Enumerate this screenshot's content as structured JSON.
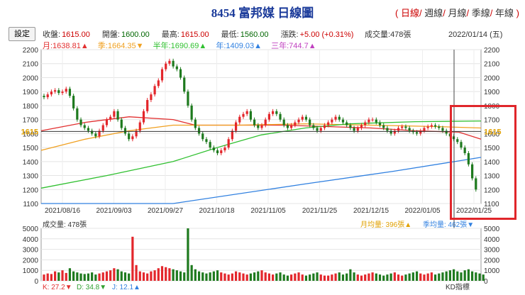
{
  "header": {
    "title": "8454 富邦媒 日線圖",
    "periods": [
      "日線",
      "週線",
      "月線",
      "季線",
      "年線"
    ],
    "selected_period": "日線",
    "settings_label": "設定"
  },
  "quote": {
    "close_label": "收盤:",
    "close": "1615.00",
    "open_label": "開盤:",
    "open": "1600.00",
    "high_label": "最高:",
    "high": "1615.00",
    "low_label": "最低:",
    "low": "1560.00",
    "change_label": "漲跌:",
    "change": "+5.00 (+0.31%)",
    "volume_label": "成交量:",
    "volume": "478張",
    "date": "2022/01/14 (五)"
  },
  "ma_legend": {
    "month": "月:1638.81▲",
    "season": "季:1664.35▼",
    "half_year": "半年:1690.69▲",
    "year": "年:1409.03▲",
    "three_year": "三年:744.7▲"
  },
  "colors": {
    "up": "#e3262b",
    "down": "#1e7a1e",
    "month_ma": "#e23030",
    "season_ma": "#f0a020",
    "half_year_ma": "#30c030",
    "year_ma": "#3080e0",
    "three_year_ma": "#c040c0",
    "highlight": "#e0262b"
  },
  "chart_data": [
    {
      "type": "candlestick",
      "price_axis_ticks": [
        1100,
        1200,
        1300,
        1400,
        1500,
        1600,
        1700,
        1800,
        1900,
        2000,
        2100,
        2200
      ],
      "ylim": [
        1100,
        2200
      ],
      "reference_price": 1615,
      "reference_label": "1615",
      "x_tick_labels": [
        "2021/08/16",
        "2021/09/03",
        "2021/09/27",
        "2021/10/18",
        "2021/11/05",
        "2021/11/25",
        "2021/12/15",
        "2022/01/05",
        "2022/01/25"
      ],
      "closes": [
        1860,
        1880,
        1900,
        1910,
        1890,
        1900,
        1920,
        1870,
        1780,
        1700,
        1660,
        1640,
        1620,
        1600,
        1580,
        1620,
        1660,
        1700,
        1720,
        1760,
        1700,
        1640,
        1600,
        1560,
        1580,
        1620,
        1680,
        1760,
        1840,
        1880,
        1940,
        1980,
        2060,
        2100,
        2120,
        2080,
        2060,
        2000,
        1900,
        1800,
        1700,
        1640,
        1600,
        1560,
        1540,
        1500,
        1480,
        1460,
        1480,
        1500,
        1560,
        1620,
        1680,
        1720,
        1740,
        1760,
        1700,
        1660,
        1640,
        1660,
        1700,
        1740,
        1760,
        1740,
        1700,
        1660,
        1640,
        1660,
        1680,
        1700,
        1720,
        1700,
        1660,
        1640,
        1620,
        1640,
        1660,
        1680,
        1700,
        1720,
        1700,
        1680,
        1660,
        1640,
        1620,
        1640,
        1660,
        1680,
        1700,
        1700,
        1680,
        1660,
        1640,
        1620,
        1600,
        1620,
        1640,
        1650,
        1640,
        1620,
        1610,
        1600,
        1620,
        1640,
        1650,
        1660,
        1650,
        1640,
        1620,
        1600,
        1580,
        1560,
        1540,
        1500,
        1460,
        1380,
        1280,
        1200
      ],
      "volumes": [
        600,
        700,
        650,
        900,
        800,
        1000,
        750,
        1200,
        900,
        800,
        700,
        650,
        700,
        800,
        600,
        700,
        800,
        900,
        1000,
        1200,
        1100,
        900,
        800,
        700,
        4200,
        1500,
        900,
        800,
        700,
        900,
        1000,
        1200,
        1400,
        1300,
        1200,
        1100,
        1000,
        900,
        800,
        5000,
        1500,
        1100,
        900,
        800,
        700,
        800,
        900,
        1000,
        800,
        700,
        600,
        700,
        900,
        800,
        700,
        600,
        700,
        800,
        900,
        1000,
        800,
        700,
        600,
        700,
        800,
        600,
        500,
        600,
        700,
        800,
        600,
        500,
        600,
        700,
        800,
        600,
        500,
        500,
        600,
        700,
        800,
        600,
        700,
        1100,
        800,
        600,
        500,
        600,
        700,
        800,
        700,
        600,
        500,
        600,
        700,
        800,
        600,
        500,
        600,
        700,
        800,
        900,
        700,
        600,
        700,
        800,
        600,
        700,
        800,
        900,
        1000,
        1100,
        900,
        800,
        1000,
        1100,
        900,
        800,
        700,
        600
      ],
      "ma": [
        {
          "name": "月",
          "color": "#e23030",
          "points": [
            [
              0,
              1620
            ],
            [
              0.1,
              1680
            ],
            [
              0.2,
              1720
            ],
            [
              0.3,
              1700
            ],
            [
              0.35,
              1660
            ],
            [
              0.45,
              1660
            ],
            [
              0.55,
              1660
            ],
            [
              0.65,
              1650
            ],
            [
              0.75,
              1640
            ],
            [
              0.85,
              1620
            ],
            [
              0.95,
              1610
            ],
            [
              1.0,
              1560
            ]
          ]
        },
        {
          "name": "季",
          "color": "#f0a020",
          "points": [
            [
              0,
              1480
            ],
            [
              0.1,
              1560
            ],
            [
              0.2,
              1620
            ],
            [
              0.3,
              1660
            ],
            [
              0.45,
              1660
            ],
            [
              0.6,
              1670
            ],
            [
              0.75,
              1660
            ],
            [
              0.9,
              1650
            ],
            [
              1.0,
              1640
            ]
          ]
        },
        {
          "name": "半年",
          "color": "#30c030",
          "points": [
            [
              0,
              1210
            ],
            [
              0.15,
              1300
            ],
            [
              0.3,
              1400
            ],
            [
              0.4,
              1500
            ],
            [
              0.5,
              1590
            ],
            [
              0.6,
              1640
            ],
            [
              0.7,
              1670
            ],
            [
              0.85,
              1685
            ],
            [
              1.0,
              1690
            ]
          ]
        },
        {
          "name": "年",
          "color": "#3080e0",
          "points": [
            [
              0,
              1100
            ],
            [
              0.3,
              1100
            ],
            [
              0.6,
              1240
            ],
            [
              0.8,
              1330
            ],
            [
              1.0,
              1430
            ]
          ]
        }
      ]
    },
    {
      "type": "bar",
      "title": "成交量: 478張",
      "y_ticks": [
        0,
        1000,
        2000,
        3000,
        4000,
        5000
      ],
      "ylim": [
        0,
        5000
      ],
      "legend": [
        "月均量: 396張▲",
        "季均量: 462張▼"
      ]
    }
  ],
  "kd": {
    "k": "K: 27.2▼",
    "d": "D: 34.8▼",
    "j": "J: 12.1▲",
    "label": "KD指標"
  }
}
